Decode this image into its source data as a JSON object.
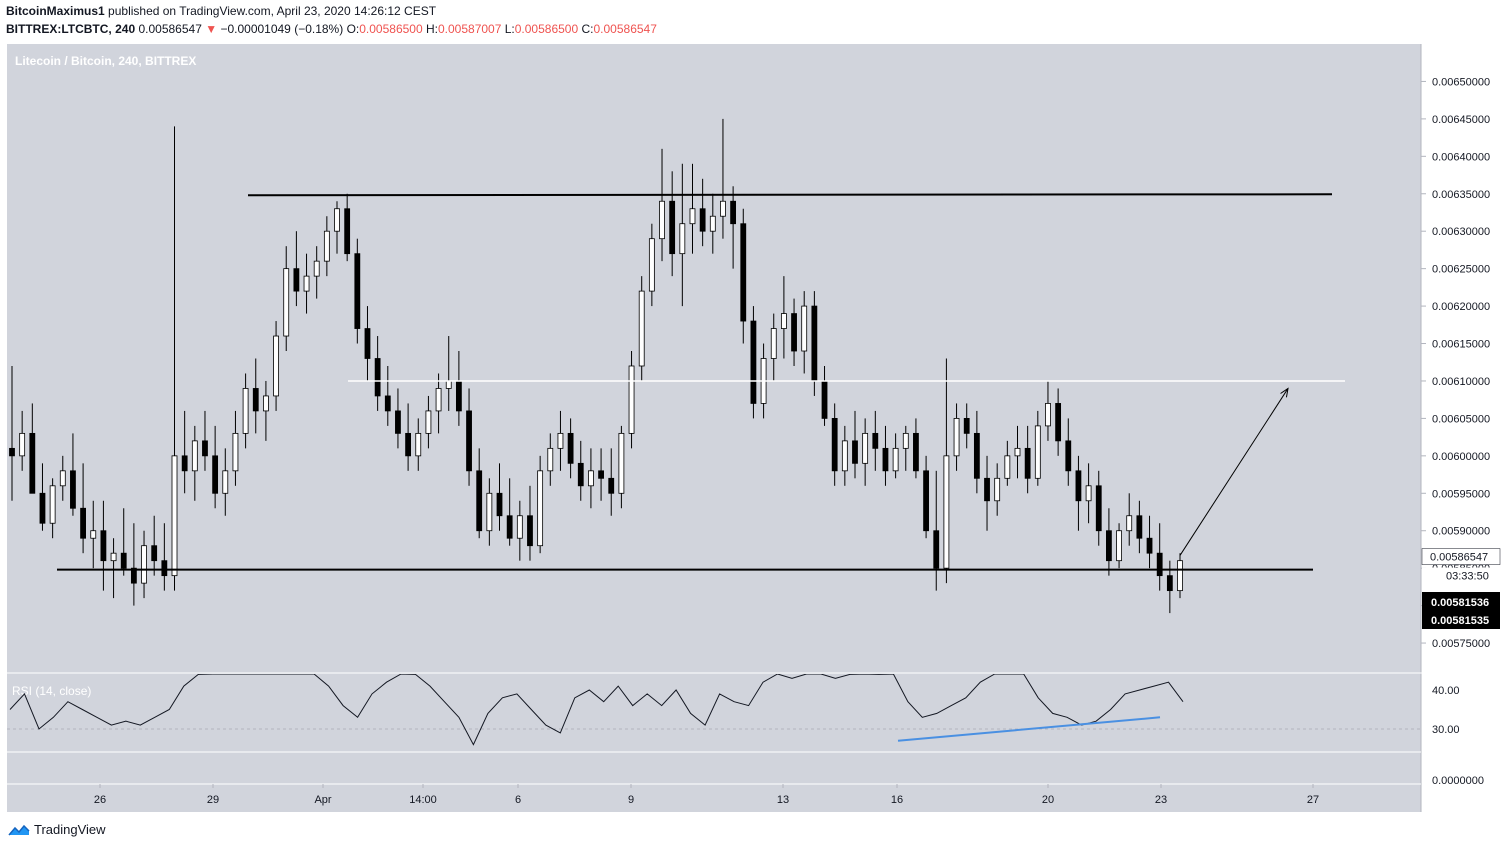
{
  "header": {
    "author": "BitcoinMaximus1",
    "published": "published on TradingView.com, April 23, 2020 14:26:12 CEST",
    "symbol": "BITTREX:LTCBTC, 240",
    "last": "0.00586547",
    "change": "−0.00001049 (−0.18%)",
    "o_label": "O:",
    "o": "0.00586500",
    "h_label": "H:",
    "h": "0.00587007",
    "l_label": "L:",
    "l": "0.00586500",
    "c_label": "C:",
    "c": "0.00586547"
  },
  "pane_title": "Litecoin / Bitcoin, 240, BITTREX",
  "rsi_title": "RSI (14, close)",
  "footer": {
    "brand": "TradingView"
  },
  "colors": {
    "bg": "#d1d4dc",
    "up": "#ffffff",
    "down": "#000000",
    "rsi_line": "#131722",
    "divergence": "#4a90e2"
  },
  "chart_data": {
    "type": "candlestick",
    "title": "Litecoin / Bitcoin, 240, BITTREX",
    "price_axis": {
      "range": [
        0.00571,
        0.00655
      ],
      "ticks": [
        "0.00575000",
        "0.00580000",
        "0.00585000",
        "0.00590000",
        "0.00595000",
        "0.00600000",
        "0.00605000",
        "0.00610000",
        "0.00615000",
        "0.00620000",
        "0.00625000",
        "0.00630000",
        "0.00635000",
        "0.00640000",
        "0.00645000",
        "0.00650000"
      ],
      "labels": {
        "last": "0.00586547",
        "countdown": "03:33:50",
        "marker1": "0.00581536",
        "marker2": "0.00581535"
      }
    },
    "time_axis": {
      "labels": [
        {
          "label": "26",
          "t": "2020-03-26"
        },
        {
          "label": "29",
          "t": "2020-03-29"
        },
        {
          "label": "Apr",
          "t": "2020-04-01"
        },
        {
          "label": "14:00",
          "t": "2020-04-03 14:00"
        },
        {
          "label": "6",
          "t": "2020-04-06"
        },
        {
          "label": "9",
          "t": "2020-04-09"
        },
        {
          "label": "13",
          "t": "2020-04-13"
        },
        {
          "label": "16",
          "t": "2020-04-16"
        },
        {
          "label": "20",
          "t": "2020-04-20"
        },
        {
          "label": "23",
          "t": "2020-04-23"
        },
        {
          "label": "27",
          "t": "2020-04-27"
        }
      ]
    },
    "candles_ohlc": [
      [
        0.00601,
        0.00612,
        0.00594,
        0.006
      ],
      [
        0.006,
        0.00606,
        0.00598,
        0.00603
      ],
      [
        0.00603,
        0.00607,
        0.00596,
        0.00595
      ],
      [
        0.00595,
        0.00599,
        0.0059,
        0.00591
      ],
      [
        0.00591,
        0.00597,
        0.00589,
        0.00596
      ],
      [
        0.00596,
        0.006,
        0.00594,
        0.00598
      ],
      [
        0.00598,
        0.00603,
        0.00592,
        0.00593
      ],
      [
        0.00593,
        0.00599,
        0.00587,
        0.00589
      ],
      [
        0.00589,
        0.00594,
        0.00585,
        0.0059
      ],
      [
        0.0059,
        0.00594,
        0.00582,
        0.00586
      ],
      [
        0.00586,
        0.00589,
        0.00581,
        0.00587
      ],
      [
        0.00587,
        0.00593,
        0.00584,
        0.00585
      ],
      [
        0.00585,
        0.00591,
        0.0058,
        0.00583
      ],
      [
        0.00583,
        0.0059,
        0.00581,
        0.00588
      ],
      [
        0.00588,
        0.00592,
        0.00584,
        0.00586
      ],
      [
        0.00586,
        0.00591,
        0.00582,
        0.00584
      ],
      [
        0.00584,
        0.00644,
        0.00582,
        0.006
      ],
      [
        0.006,
        0.00606,
        0.00595,
        0.00598
      ],
      [
        0.00598,
        0.00604,
        0.00594,
        0.00602
      ],
      [
        0.00602,
        0.00606,
        0.00598,
        0.006
      ],
      [
        0.006,
        0.00604,
        0.00593,
        0.00595
      ],
      [
        0.00595,
        0.00601,
        0.00592,
        0.00598
      ],
      [
        0.00598,
        0.00606,
        0.00596,
        0.00603
      ],
      [
        0.00603,
        0.00611,
        0.00601,
        0.00609
      ],
      [
        0.00609,
        0.00613,
        0.00603,
        0.00606
      ],
      [
        0.00606,
        0.0061,
        0.00602,
        0.00608
      ],
      [
        0.00608,
        0.00618,
        0.00606,
        0.00616
      ],
      [
        0.00616,
        0.00628,
        0.00614,
        0.00625
      ],
      [
        0.00625,
        0.0063,
        0.0062,
        0.00622
      ],
      [
        0.00622,
        0.00627,
        0.00619,
        0.00624
      ],
      [
        0.00624,
        0.00628,
        0.00621,
        0.00626
      ],
      [
        0.00626,
        0.00632,
        0.00624,
        0.0063
      ],
      [
        0.0063,
        0.00634,
        0.00627,
        0.00633
      ],
      [
        0.00633,
        0.00635,
        0.00626,
        0.00627
      ],
      [
        0.00627,
        0.00629,
        0.00615,
        0.00617
      ],
      [
        0.00617,
        0.0062,
        0.0061,
        0.00613
      ],
      [
        0.00613,
        0.00616,
        0.00606,
        0.00608
      ],
      [
        0.00608,
        0.00612,
        0.00604,
        0.00606
      ],
      [
        0.00606,
        0.00609,
        0.00601,
        0.00603
      ],
      [
        0.00603,
        0.00607,
        0.00598,
        0.006
      ],
      [
        0.006,
        0.00605,
        0.00598,
        0.00603
      ],
      [
        0.00603,
        0.00608,
        0.00601,
        0.00606
      ],
      [
        0.00606,
        0.00611,
        0.00603,
        0.00609
      ],
      [
        0.00609,
        0.00616,
        0.00606,
        0.0061
      ],
      [
        0.0061,
        0.00614,
        0.00604,
        0.00606
      ],
      [
        0.00606,
        0.00609,
        0.00596,
        0.00598
      ],
      [
        0.00598,
        0.00601,
        0.00589,
        0.0059
      ],
      [
        0.0059,
        0.00597,
        0.00588,
        0.00595
      ],
      [
        0.00595,
        0.00599,
        0.0059,
        0.00592
      ],
      [
        0.00592,
        0.00597,
        0.00588,
        0.00589
      ],
      [
        0.00589,
        0.00594,
        0.00586,
        0.00592
      ],
      [
        0.00592,
        0.00596,
        0.00586,
        0.00588
      ],
      [
        0.00588,
        0.006,
        0.00587,
        0.00598
      ],
      [
        0.00598,
        0.00603,
        0.00596,
        0.00601
      ],
      [
        0.00601,
        0.00606,
        0.00598,
        0.00603
      ],
      [
        0.00603,
        0.00605,
        0.00597,
        0.00599
      ],
      [
        0.00599,
        0.00602,
        0.00594,
        0.00596
      ],
      [
        0.00596,
        0.00601,
        0.00593,
        0.00598
      ],
      [
        0.00598,
        0.00601,
        0.00594,
        0.00597
      ],
      [
        0.00597,
        0.00601,
        0.00592,
        0.00595
      ],
      [
        0.00595,
        0.00604,
        0.00593,
        0.00603
      ],
      [
        0.00603,
        0.00614,
        0.00601,
        0.00612
      ],
      [
        0.00612,
        0.00624,
        0.0061,
        0.00622
      ],
      [
        0.00622,
        0.00631,
        0.0062,
        0.00629
      ],
      [
        0.00629,
        0.00641,
        0.00626,
        0.00634
      ],
      [
        0.00634,
        0.00638,
        0.00624,
        0.00627
      ],
      [
        0.00627,
        0.00639,
        0.0062,
        0.00631
      ],
      [
        0.00631,
        0.00639,
        0.00627,
        0.00633
      ],
      [
        0.00633,
        0.00637,
        0.00628,
        0.0063
      ],
      [
        0.0063,
        0.00635,
        0.00627,
        0.00632
      ],
      [
        0.00632,
        0.00645,
        0.00629,
        0.00634
      ],
      [
        0.00634,
        0.00636,
        0.00625,
        0.00631
      ],
      [
        0.00631,
        0.00633,
        0.00615,
        0.00618
      ],
      [
        0.00618,
        0.0062,
        0.00605,
        0.00607
      ],
      [
        0.00607,
        0.00615,
        0.00605,
        0.00613
      ],
      [
        0.00613,
        0.00619,
        0.0061,
        0.00617
      ],
      [
        0.00617,
        0.00624,
        0.00613,
        0.00619
      ],
      [
        0.00619,
        0.00621,
        0.00612,
        0.00614
      ],
      [
        0.00614,
        0.00622,
        0.00611,
        0.0062
      ],
      [
        0.0062,
        0.00622,
        0.00608,
        0.0061
      ],
      [
        0.0061,
        0.00612,
        0.00604,
        0.00605
      ],
      [
        0.00605,
        0.00607,
        0.00596,
        0.00598
      ],
      [
        0.00598,
        0.00604,
        0.00596,
        0.00602
      ],
      [
        0.00602,
        0.00606,
        0.00597,
        0.00599
      ],
      [
        0.00599,
        0.00605,
        0.00596,
        0.00603
      ],
      [
        0.00603,
        0.00606,
        0.00598,
        0.00601
      ],
      [
        0.00601,
        0.00604,
        0.00596,
        0.00598
      ],
      [
        0.00598,
        0.00603,
        0.00597,
        0.00601
      ],
      [
        0.00601,
        0.00604,
        0.00598,
        0.00603
      ],
      [
        0.00603,
        0.00605,
        0.00597,
        0.00598
      ],
      [
        0.00598,
        0.006,
        0.00589,
        0.0059
      ],
      [
        0.0059,
        0.00598,
        0.00582,
        0.00585
      ],
      [
        0.00585,
        0.00613,
        0.00583,
        0.006
      ],
      [
        0.006,
        0.00607,
        0.00598,
        0.00605
      ],
      [
        0.00605,
        0.00607,
        0.00601,
        0.00603
      ],
      [
        0.00603,
        0.00606,
        0.00595,
        0.00597
      ],
      [
        0.00597,
        0.006,
        0.0059,
        0.00594
      ],
      [
        0.00594,
        0.00599,
        0.00592,
        0.00597
      ],
      [
        0.00597,
        0.00602,
        0.00596,
        0.006
      ],
      [
        0.006,
        0.00604,
        0.00597,
        0.00601
      ],
      [
        0.00601,
        0.00604,
        0.00595,
        0.00597
      ],
      [
        0.00597,
        0.00606,
        0.00596,
        0.00604
      ],
      [
        0.00604,
        0.0061,
        0.00602,
        0.00607
      ],
      [
        0.00607,
        0.00609,
        0.006,
        0.00602
      ],
      [
        0.00602,
        0.00605,
        0.00596,
        0.00598
      ],
      [
        0.00598,
        0.006,
        0.0059,
        0.00594
      ],
      [
        0.00594,
        0.00599,
        0.00591,
        0.00596
      ],
      [
        0.00596,
        0.00598,
        0.00588,
        0.0059
      ],
      [
        0.0059,
        0.00593,
        0.00584,
        0.00586
      ],
      [
        0.00586,
        0.00591,
        0.00585,
        0.0059
      ],
      [
        0.0059,
        0.00595,
        0.00588,
        0.00592
      ],
      [
        0.00592,
        0.00594,
        0.00587,
        0.00589
      ],
      [
        0.00589,
        0.00592,
        0.00585,
        0.00587
      ],
      [
        0.00587,
        0.00591,
        0.00582,
        0.00584
      ],
      [
        0.00584,
        0.00586,
        0.00579,
        0.00582
      ],
      [
        0.00582,
        0.00587,
        0.00581,
        0.00586
      ]
    ],
    "annotations": [
      {
        "type": "horizontal_line",
        "price": 0.006348,
        "color": "#000000",
        "desc": "resistance"
      },
      {
        "type": "horizontal_line",
        "price": 0.005848,
        "color": "#000000",
        "desc": "support"
      },
      {
        "type": "horizontal_line",
        "price": 0.0061,
        "color": "#ffffff",
        "desc": "target level"
      },
      {
        "type": "arrow",
        "from_price": 0.005867,
        "to_price": 0.00609
      }
    ],
    "rsi": {
      "ticks": [
        "40.00",
        "30.00",
        "0.0000000"
      ],
      "values": [
        35,
        39,
        30,
        33,
        37,
        35,
        33,
        31,
        32,
        31,
        33,
        35,
        41,
        44,
        46,
        47,
        48,
        50,
        52,
        55,
        52,
        45,
        41,
        36,
        33,
        39,
        42,
        45,
        44,
        41,
        37,
        33,
        26,
        34,
        38,
        39,
        35,
        31,
        29,
        38,
        40,
        37,
        41,
        36,
        39,
        36,
        40,
        34,
        31,
        39,
        37,
        36,
        42,
        45,
        43,
        46,
        45,
        43,
        44,
        48,
        44,
        45,
        37,
        33,
        34,
        36,
        38,
        42,
        45,
        46,
        47,
        38,
        34,
        33,
        31,
        32,
        35,
        39,
        40,
        41,
        42,
        37
      ],
      "divergence": [
        {
          "index": 0,
          "value": 27
        },
        {
          "index": 1,
          "value": 33
        }
      ]
    }
  }
}
